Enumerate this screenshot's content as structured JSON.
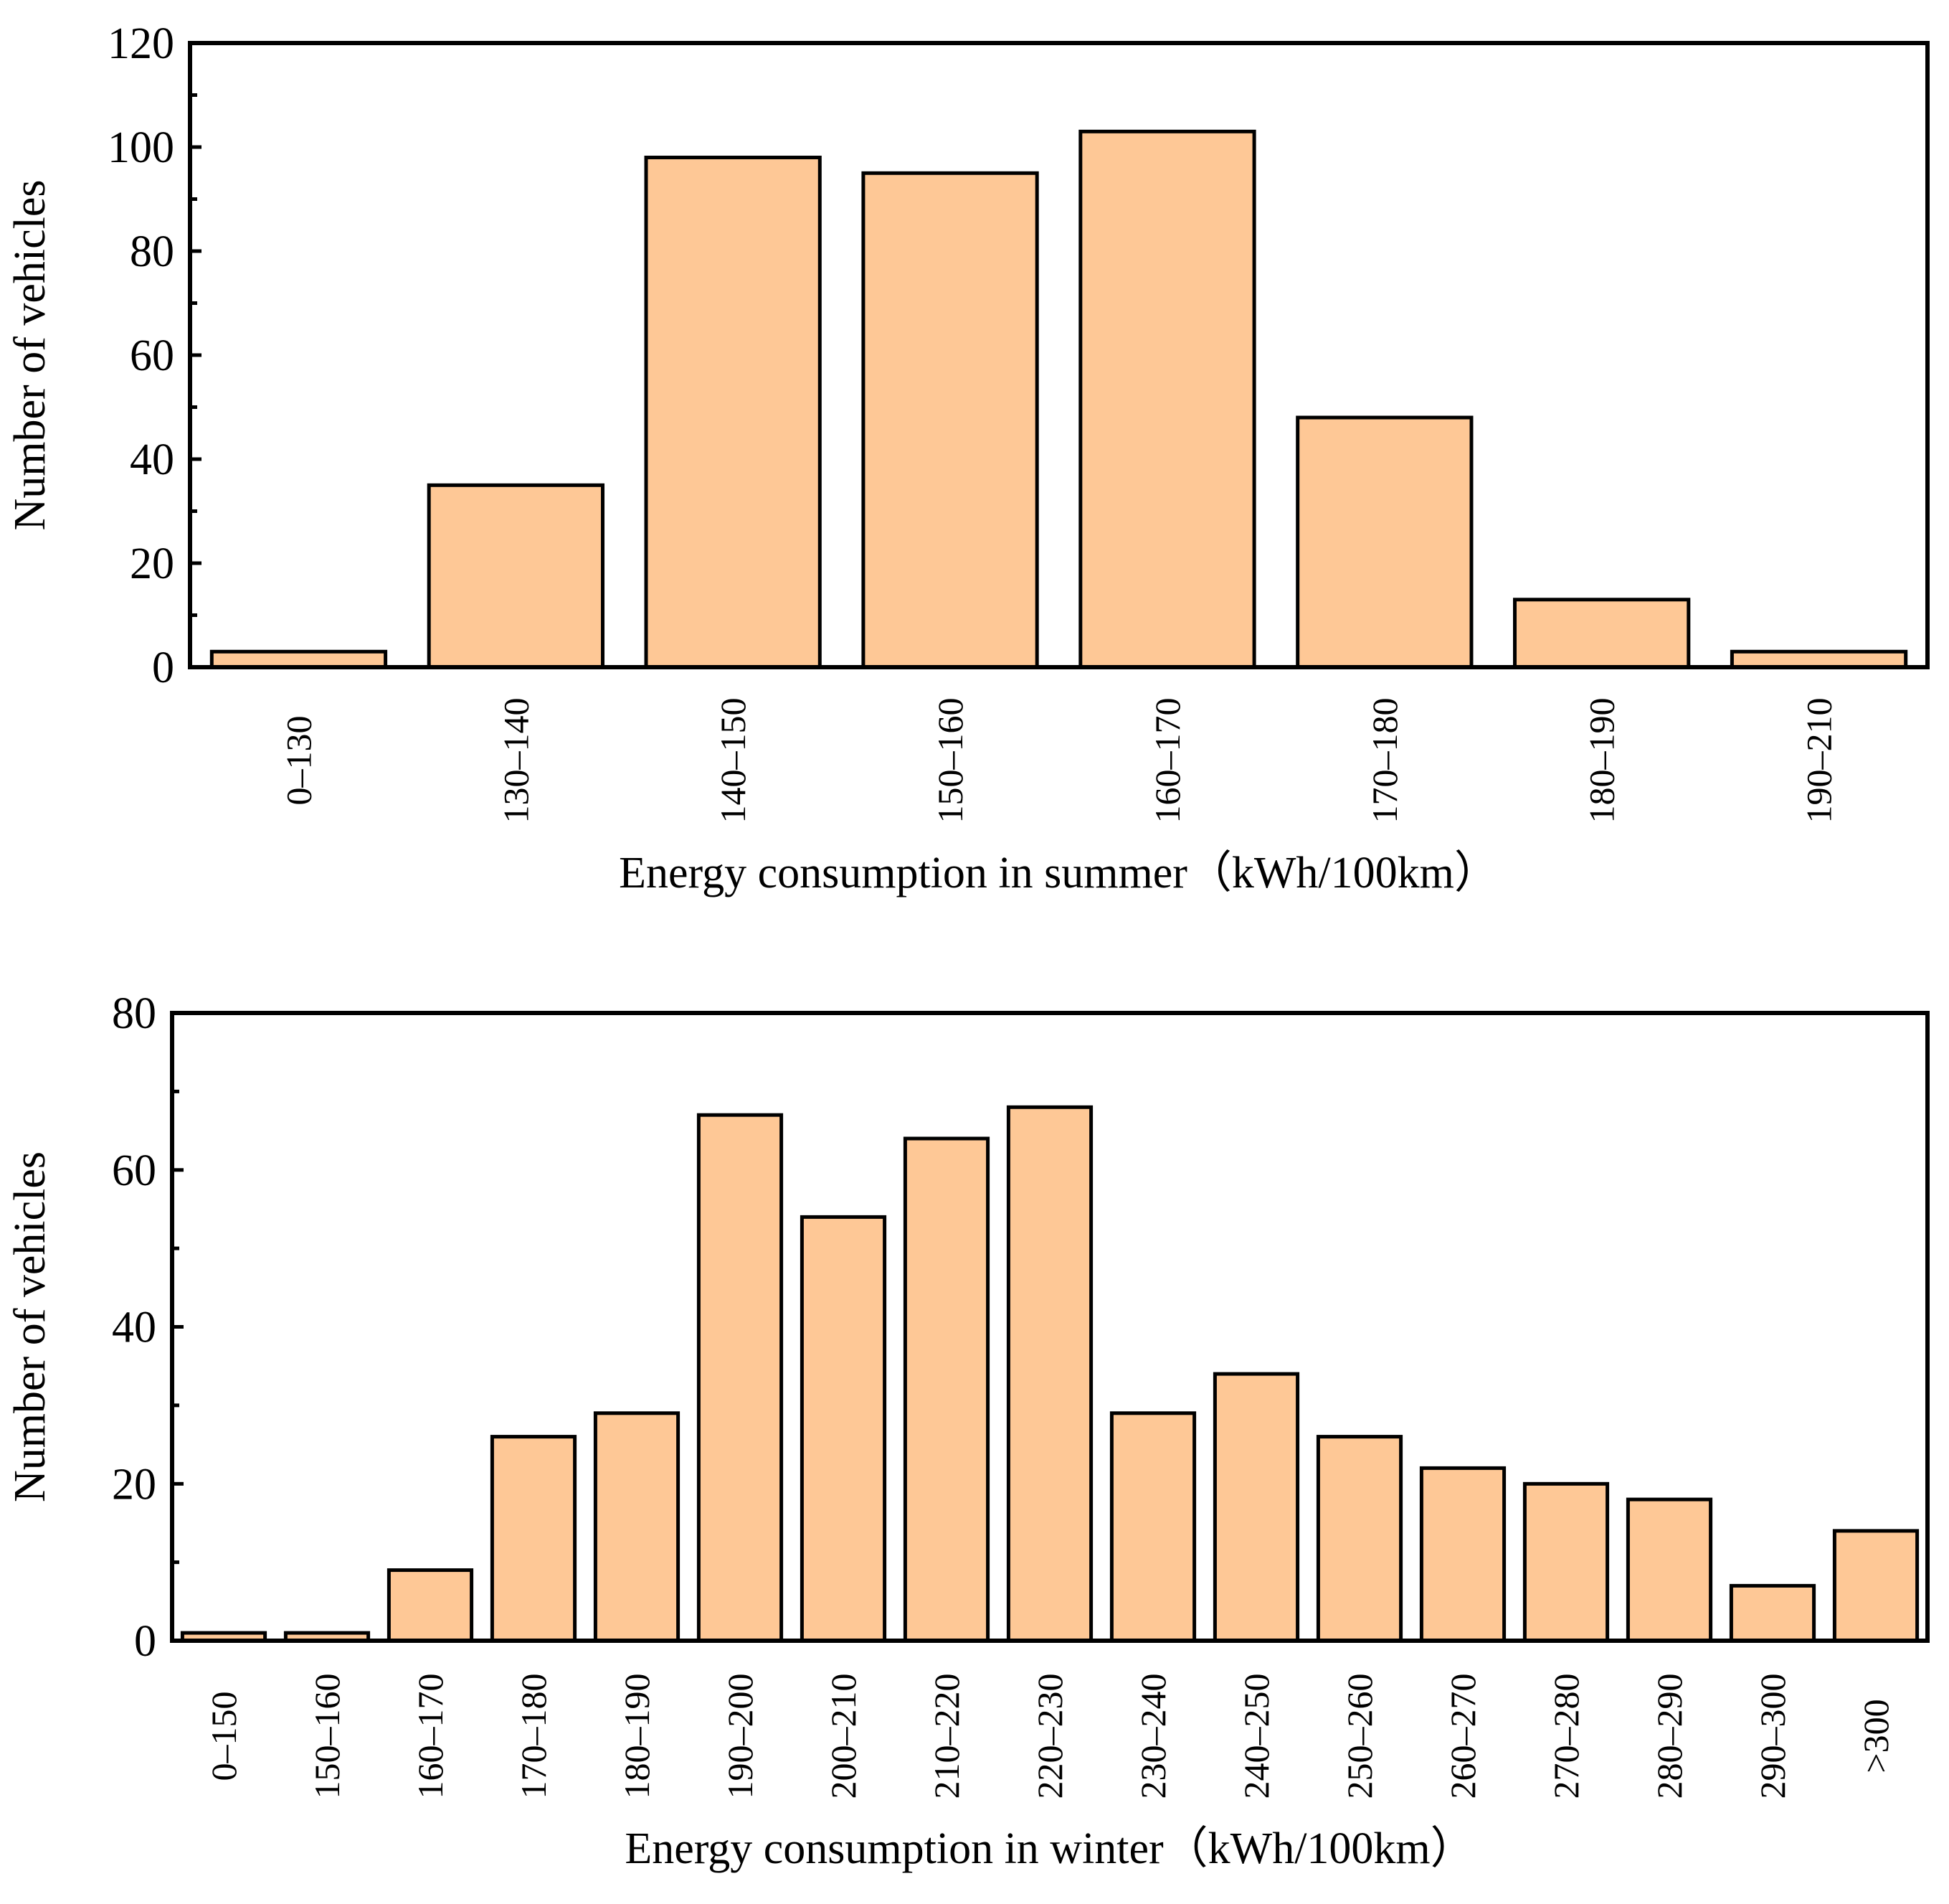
{
  "chart_data": [
    {
      "type": "bar",
      "title": "",
      "xlabel": "Energy consumption  in summer（kWh/100km）",
      "ylabel": "Number of vehicles",
      "ylim": [
        0,
        120
      ],
      "yticks": [
        0,
        20,
        40,
        60,
        80,
        100,
        120
      ],
      "grid": false,
      "legend": "none",
      "bar_color": "#fec896",
      "categories": [
        "0–130",
        "130–140",
        "140–150",
        "150–160",
        "160–170",
        "170–180",
        "180–190",
        "190–210"
      ],
      "values": [
        3,
        35,
        98,
        95,
        103,
        48,
        13,
        3
      ]
    },
    {
      "type": "bar",
      "title": "",
      "xlabel": "Energy consumption  in winter（kWh/100km）",
      "ylabel": "Number of vehicles",
      "ylim": [
        0,
        80
      ],
      "yticks": [
        0,
        20,
        40,
        60,
        80
      ],
      "grid": false,
      "legend": "none",
      "bar_color": "#fec896",
      "categories": [
        "0–150",
        "150–160",
        "160–170",
        "170–180",
        "180–190",
        "190–200",
        "200–210",
        "210–220",
        "220–230",
        "230–240",
        "240–250",
        "250–260",
        "260–270",
        "270–280",
        "280–290",
        "290–300",
        ">300"
      ],
      "values": [
        1,
        1,
        9,
        26,
        29,
        67,
        54,
        64,
        68,
        29,
        34,
        26,
        22,
        20,
        18,
        7,
        14
      ]
    }
  ]
}
